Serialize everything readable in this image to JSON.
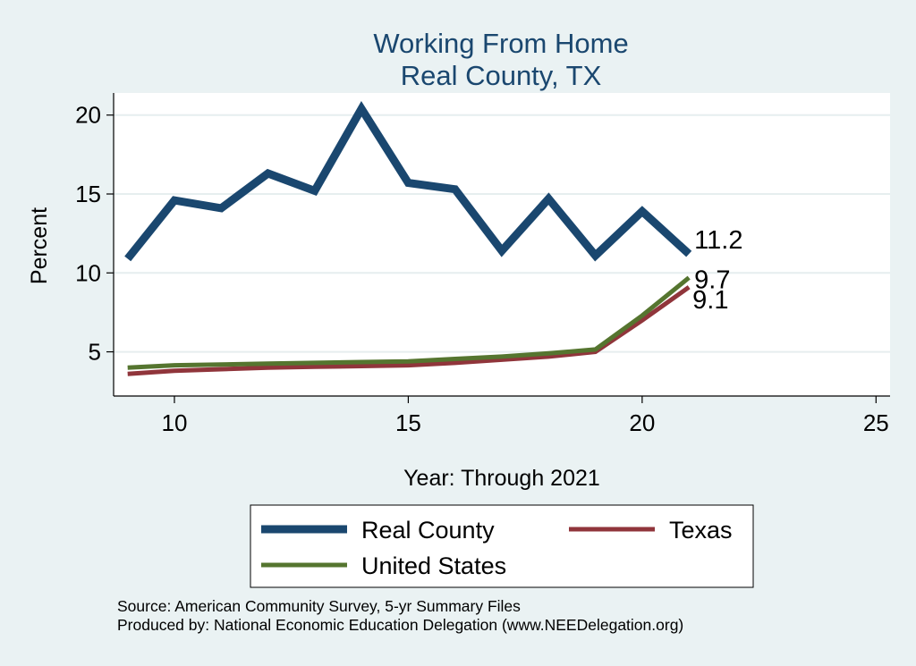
{
  "chart_data": {
    "type": "line",
    "title": "Working From Home",
    "subtitle": "Real County, TX",
    "xlabel": "Year: Through 2021",
    "ylabel": "Percent",
    "xlim": [
      8.7,
      25.3
    ],
    "ylim": [
      2.2,
      21.4
    ],
    "xticks": [
      10,
      15,
      20,
      25
    ],
    "yticks": [
      5,
      10,
      15,
      20
    ],
    "grid": true,
    "legend_position": "bottom",
    "x": [
      9,
      10,
      11,
      12,
      13,
      14,
      15,
      16,
      17,
      18,
      19,
      20,
      21
    ],
    "series": [
      {
        "name": "Real County",
        "color": "#1a476f",
        "values": [
          10.9,
          14.6,
          14.1,
          16.3,
          15.2,
          20.4,
          15.7,
          15.3,
          11.4,
          14.7,
          11.1,
          13.9,
          11.2
        ],
        "end_label": "11.2"
      },
      {
        "name": "Texas",
        "color": "#90353b",
        "values": [
          3.6,
          3.8,
          3.9,
          4.0,
          4.05,
          4.1,
          4.15,
          4.3,
          4.5,
          4.7,
          5.0,
          7.0,
          9.1
        ],
        "end_label": "9.1"
      },
      {
        "name": "United States",
        "color": "#55752f",
        "values": [
          4.0,
          4.15,
          4.2,
          4.25,
          4.3,
          4.35,
          4.4,
          4.55,
          4.7,
          4.9,
          5.15,
          7.3,
          9.7
        ],
        "end_label": "9.7"
      }
    ]
  },
  "footer": {
    "source": "Source: American Community Survey, 5-yr Summary Files",
    "produced": "Produced by: National Economic Education Delegation (www.NEEDelegation.org)"
  }
}
